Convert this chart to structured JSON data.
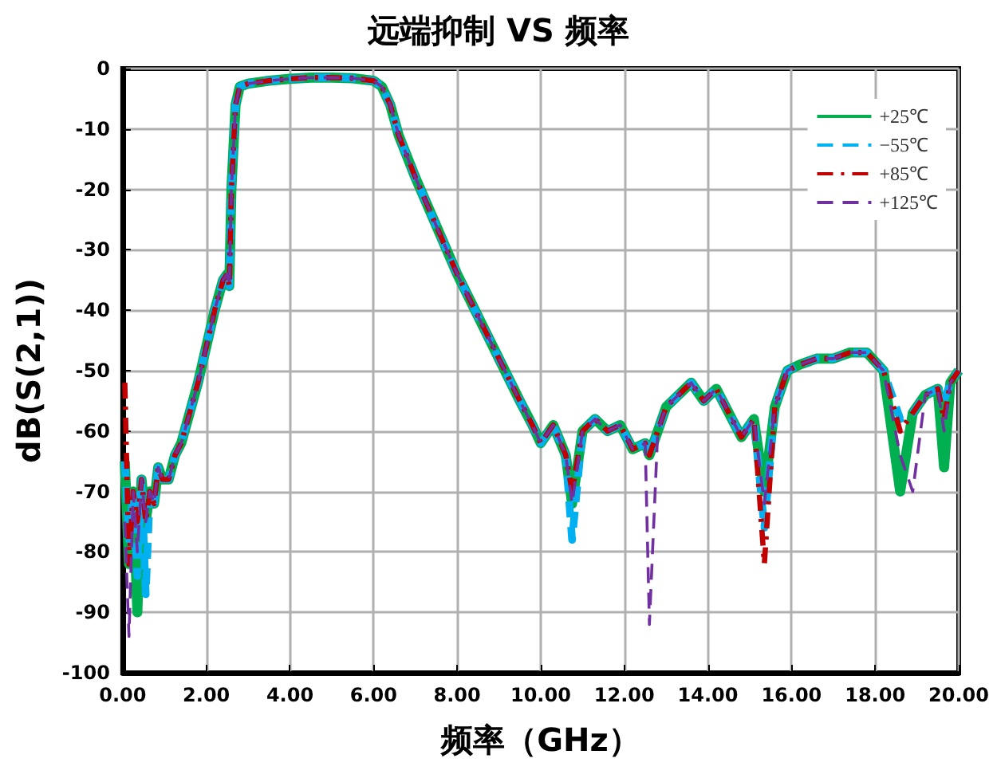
{
  "chart_data": {
    "type": "line",
    "title": "远端抑制 VS 频率",
    "xlabel": "频率（GHz）",
    "ylabel": "dB(S(2,1))",
    "x": [
      0.05,
      0.15,
      0.25,
      0.35,
      0.45,
      0.55,
      0.65,
      0.75,
      0.85,
      0.95,
      1.1,
      1.25,
      1.4,
      1.6,
      1.8,
      2.0,
      2.2,
      2.4,
      2.5,
      2.55,
      2.6,
      2.7,
      2.8,
      3.0,
      3.5,
      4.0,
      4.5,
      5.0,
      5.5,
      6.0,
      6.2,
      6.4,
      6.6,
      7.0,
      7.5,
      8.0,
      8.5,
      9.0,
      9.5,
      9.8,
      10.0,
      10.3,
      10.6,
      10.75,
      11.0,
      11.3,
      11.6,
      11.9,
      12.2,
      12.5,
      12.6,
      12.8,
      13.0,
      13.3,
      13.6,
      13.9,
      14.2,
      14.5,
      14.8,
      15.1,
      15.35,
      15.6,
      15.9,
      16.2,
      16.6,
      17.0,
      17.4,
      17.8,
      18.2,
      18.6,
      18.9,
      19.2,
      19.5,
      19.65,
      19.8,
      20.0
    ],
    "series": [
      {
        "name": "+25℃",
        "color": "#00b050",
        "line_style": "solid",
        "values": [
          -65,
          -82,
          -70,
          -90,
          -68,
          -75,
          -70,
          -72,
          -66,
          -68,
          -68,
          -64,
          -62,
          -57,
          -52,
          -46,
          -40,
          -35,
          -34,
          -36,
          -20,
          -6,
          -3,
          -2.5,
          -2,
          -1.7,
          -1.5,
          -1.5,
          -1.6,
          -2,
          -3,
          -6,
          -11,
          -18,
          -26,
          -34,
          -41,
          -48,
          -55,
          -59,
          -62,
          -59,
          -64,
          -72,
          -60,
          -58,
          -60,
          -59,
          -63,
          -62,
          -64,
          -60,
          -56,
          -54,
          -52,
          -55,
          -53,
          -57,
          -61,
          -58,
          -70,
          -56,
          -50,
          -49,
          -48,
          -48,
          -47,
          -47,
          -50,
          -70,
          -57,
          -54,
          -53,
          -66,
          -52,
          -50
        ]
      },
      {
        "name": "−55℃",
        "color": "#00b0f0",
        "line_style": "dashed",
        "values": [
          -65,
          -78,
          -70,
          -84,
          -68,
          -87,
          -70,
          -72,
          -66,
          -68,
          -68,
          -64,
          -62,
          -57,
          -52,
          -46,
          -40,
          -35,
          -34,
          -36,
          -20,
          -6,
          -3,
          -2.5,
          -2,
          -1.7,
          -1.5,
          -1.5,
          -1.6,
          -2,
          -3,
          -6,
          -11,
          -18,
          -26,
          -34,
          -41,
          -48,
          -55,
          -59,
          -62,
          -59,
          -64,
          -78,
          -60,
          -58,
          -60,
          -59,
          -63,
          -62,
          -64,
          -60,
          -56,
          -54,
          -52,
          -55,
          -53,
          -57,
          -61,
          -58,
          -76,
          -56,
          -50,
          -49,
          -48,
          -48,
          -47,
          -47,
          -50,
          -58,
          -57,
          -54,
          -53,
          -55,
          -52,
          -50
        ]
      },
      {
        "name": "+85℃",
        "color": "#c00000",
        "line_style": "dotted",
        "values": [
          -52,
          -82,
          -70,
          -75,
          -68,
          -75,
          -70,
          -72,
          -66,
          -68,
          -68,
          -64,
          -62,
          -57,
          -52,
          -46,
          -40,
          -35,
          -34,
          -36,
          -20,
          -6,
          -3,
          -2.5,
          -2,
          -1.7,
          -1.5,
          -1.5,
          -1.6,
          -2,
          -3,
          -6,
          -11,
          -18,
          -26,
          -34,
          -41,
          -48,
          -55,
          -59,
          -62,
          -59,
          -64,
          -70,
          -60,
          -58,
          -60,
          -59,
          -63,
          -62,
          -64,
          -60,
          -56,
          -54,
          -52,
          -55,
          -53,
          -57,
          -61,
          -58,
          -82,
          -56,
          -50,
          -49,
          -48,
          -48,
          -47,
          -47,
          -50,
          -60,
          -57,
          -54,
          -53,
          -58,
          -52,
          -50
        ]
      },
      {
        "name": "+125℃",
        "color": "#7030a0",
        "line_style": "dashed",
        "values": [
          -75,
          -94,
          -70,
          -80,
          -68,
          -75,
          -70,
          -72,
          -66,
          -68,
          -68,
          -64,
          -62,
          -57,
          -52,
          -46,
          -40,
          -35,
          -34,
          -36,
          -20,
          -6,
          -3,
          -2.5,
          -2,
          -1.7,
          -1.5,
          -1.5,
          -1.6,
          -2,
          -3,
          -6,
          -11,
          -18,
          -26,
          -34,
          -41,
          -48,
          -55,
          -59,
          -62,
          -59,
          -64,
          -72,
          -60,
          -58,
          -60,
          -59,
          -63,
          -62,
          -92,
          -60,
          -56,
          -54,
          -52,
          -55,
          -53,
          -57,
          -61,
          -58,
          -72,
          -56,
          -50,
          -49,
          -48,
          -48,
          -47,
          -47,
          -50,
          -64,
          -70,
          -54,
          -53,
          -60,
          -52,
          -50
        ]
      }
    ],
    "xlim": [
      0,
      20
    ],
    "xticks": [
      {
        "value": 0,
        "label": "0.00"
      },
      {
        "value": 2,
        "label": "2.00"
      },
      {
        "value": 4,
        "label": "4.00"
      },
      {
        "value": 6,
        "label": "6.00"
      },
      {
        "value": 8,
        "label": "8.00"
      },
      {
        "value": 10,
        "label": "10.00"
      },
      {
        "value": 12,
        "label": "12.00"
      },
      {
        "value": 14,
        "label": "14.00"
      },
      {
        "value": 16,
        "label": "16.00"
      },
      {
        "value": 18,
        "label": "18.00"
      },
      {
        "value": 20,
        "label": "20.00"
      }
    ],
    "ylim": [
      -100,
      0
    ],
    "yticks": [
      -100,
      -90,
      -80,
      -70,
      -60,
      -50,
      -40,
      -30,
      -20,
      -10,
      0
    ],
    "grid": true,
    "legend": "top right",
    "marker": "none"
  }
}
